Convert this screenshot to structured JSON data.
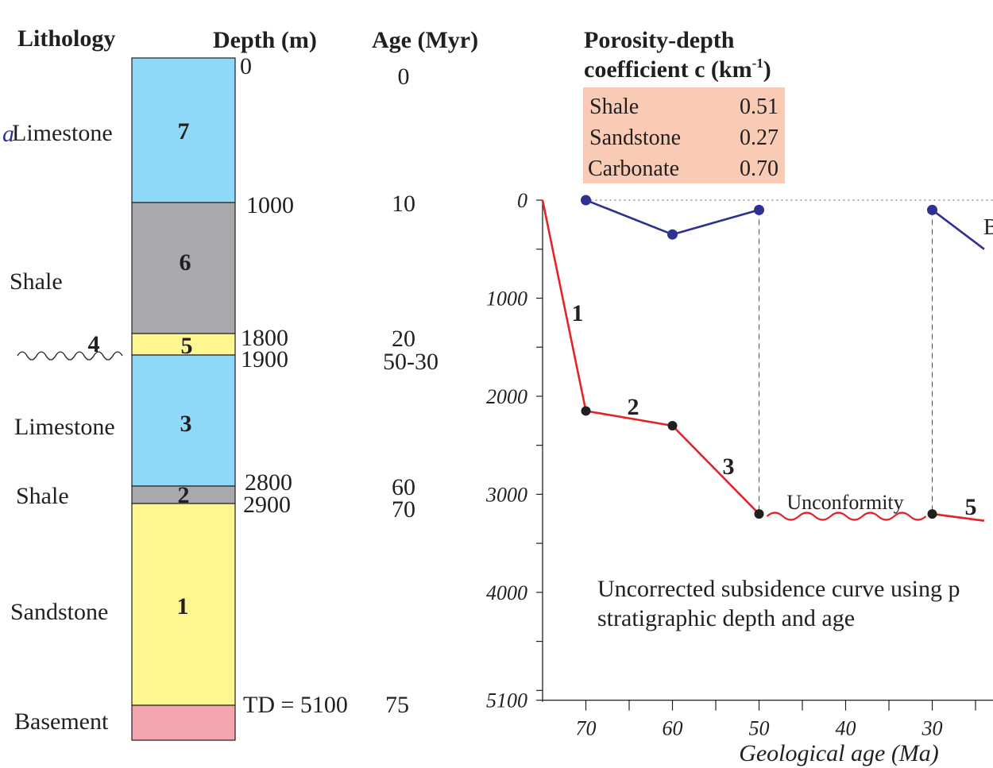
{
  "column": {
    "headers": {
      "lithology": "Lithology",
      "depth": "Depth (m)",
      "age": "Age (Myr)"
    },
    "units": [
      {
        "num": "7",
        "lithology": "Limestone",
        "color": "#8ed8f8"
      },
      {
        "num": "6",
        "lithology": "Shale",
        "color": "#a7a9ac"
      },
      {
        "num": "5",
        "lithology": "",
        "color": "#fff68f"
      },
      {
        "num": "3",
        "lithology": "Limestone",
        "color": "#8ed8f8"
      },
      {
        "num": "2",
        "lithology": "Shale",
        "color": "#a7a9ac"
      },
      {
        "num": "1",
        "lithology": "Sandstone",
        "color": "#fff68f"
      },
      {
        "num": "",
        "lithology": "Basement",
        "color": "#f4a6ae"
      }
    ],
    "unconformity_label": "4",
    "depth_labels": [
      "0",
      "1000",
      "1800",
      "1900",
      "2800",
      "2900",
      "TD = 5100"
    ],
    "age_labels": [
      "0",
      "10",
      "20",
      "50-30",
      "60",
      "70",
      "75"
    ]
  },
  "porosity": {
    "title_line1": "Porosity-depth",
    "title_line2": "coefficient c (km",
    "title_sup": "-1",
    "title_end": ")",
    "rows": [
      {
        "lith": "Shale",
        "value": "0.51"
      },
      {
        "lith": "Sandstone",
        "value": "0.27"
      },
      {
        "lith": "Carbonate",
        "value": "0.70"
      }
    ],
    "bg_color": "#f9cbb5"
  },
  "chart": {
    "y_ticks": [
      "0",
      "1000",
      "2000",
      "3000",
      "4000",
      "5100"
    ],
    "x_ticks": [
      "70",
      "60",
      "50",
      "40",
      "30"
    ],
    "xlabel": "Geological age (Ma)",
    "segment_labels": [
      "1",
      "2",
      "3",
      "5"
    ],
    "unconformity_text": "Unconformity",
    "partial_label": "B",
    "note_line1": "Uncorrected subsidence curve using p",
    "note_line2": "stratigraphic depth and age",
    "colors": {
      "red": "#e32326",
      "blue": "#2e3192"
    }
  },
  "chart_data": {
    "type": "line",
    "xlabel": "Geological age (Ma)",
    "ylabel": "",
    "xlim": [
      75,
      24
    ],
    "ylim": [
      0,
      5100
    ],
    "series": [
      {
        "points": [
          [
            75,
            0
          ],
          [
            70,
            2150
          ],
          [
            60,
            2300
          ],
          [
            50,
            3200
          ],
          [
            30,
            3200
          ],
          [
            24,
            3270
          ]
        ]
      },
      {
        "points": [
          [
            70,
            0
          ],
          [
            60,
            350
          ],
          [
            50,
            100
          ],
          [
            30,
            100
          ],
          [
            24,
            500
          ]
        ]
      }
    ]
  }
}
